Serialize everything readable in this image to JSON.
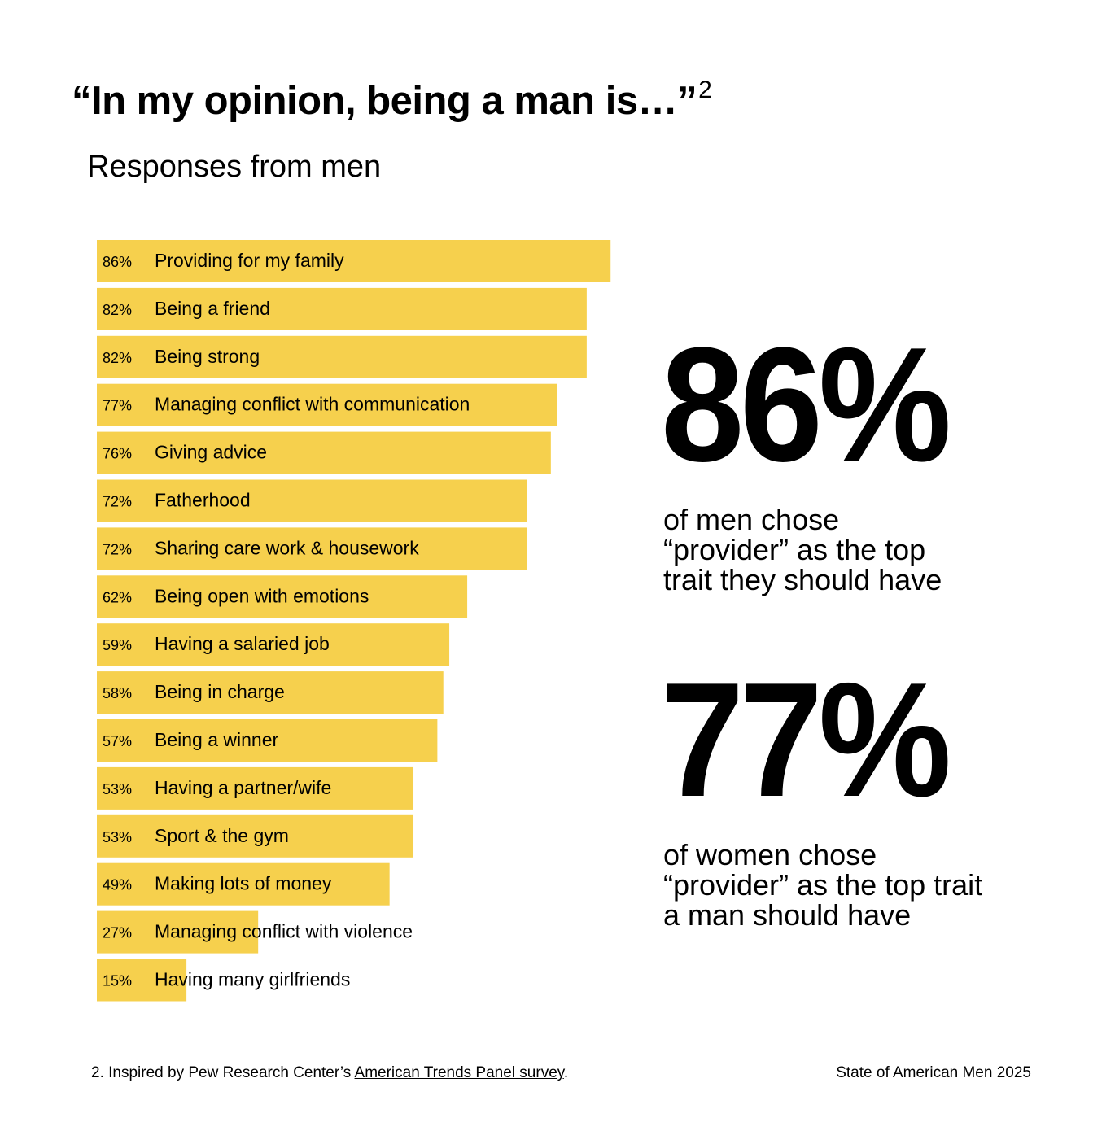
{
  "header": {
    "title": "“In my opinion, being a man is…”",
    "title_superscript": "2",
    "subtitle": "Responses from men"
  },
  "chart_data": {
    "type": "bar",
    "orientation": "horizontal",
    "categories": [
      "Providing for my family",
      "Being a friend",
      "Being strong",
      "Managing conflict with communication",
      "Giving advice",
      "Fatherhood",
      "Sharing care work & housework",
      "Being open with emotions",
      "Having a salaried job",
      "Being in charge",
      "Being a winner",
      "Having a partner/wife",
      "Sport & the gym",
      "Making lots of money",
      "Managing conflict with violence",
      "Having many girlfriends"
    ],
    "values": [
      86,
      82,
      82,
      77,
      76,
      72,
      72,
      62,
      59,
      58,
      57,
      53,
      53,
      49,
      27,
      15
    ],
    "value_labels": [
      "86%",
      "82%",
      "82%",
      "77%",
      "76%",
      "72%",
      "72%",
      "62%",
      "59%",
      "58%",
      "57%",
      "53%",
      "53%",
      "49%",
      "27%",
      "15%"
    ],
    "bar_color": "#F6D04D",
    "grid": false
  },
  "stats": [
    {
      "value": "86%",
      "caption_lines": [
        "of men chose",
        "“provider” as the top",
        "trait they should have"
      ]
    },
    {
      "value": "77%",
      "caption_lines": [
        "of women chose",
        "“provider” as the top trait",
        "a man should have"
      ]
    }
  ],
  "footer": {
    "footnote_prefix": "2. Inspired by Pew Research Center’s ",
    "footnote_link": "American Trends Panel survey",
    "footnote_suffix": ".",
    "right_text": "State of American Men 2025"
  }
}
